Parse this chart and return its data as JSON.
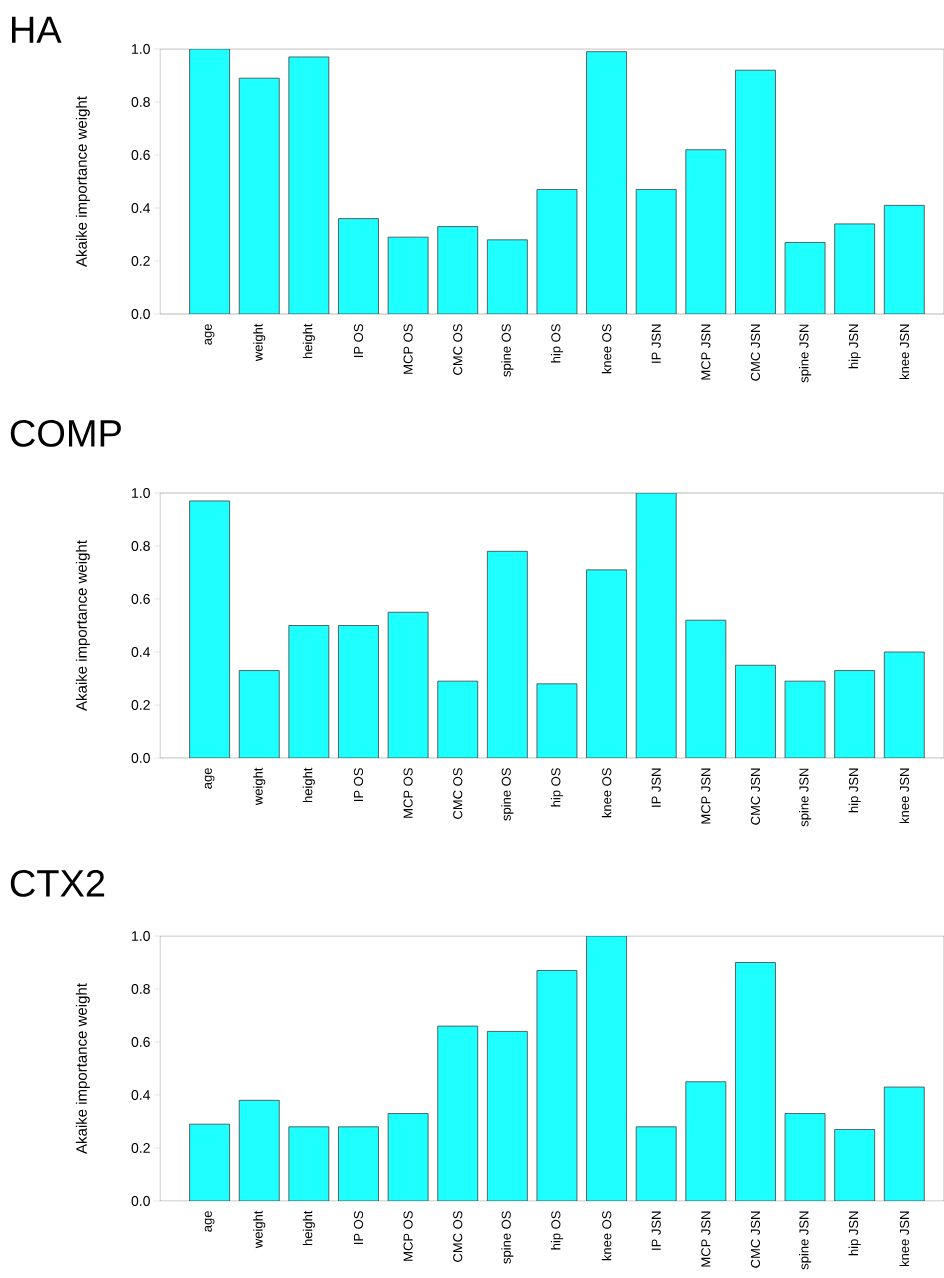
{
  "chart_data": [
    {
      "type": "bar",
      "title": "HA",
      "ylabel": "Akaike importance weight",
      "color": "#1effff",
      "categories": [
        "age",
        "weight",
        "height",
        "IP OS",
        "MCP OS",
        "CMC OS",
        "spine OS",
        "hip OS",
        "knee OS",
        "IP JSN",
        "MCP JSN",
        "CMC JSN",
        "spine JSN",
        "hip JSN",
        "knee JSN"
      ],
      "values": [
        1.0,
        0.89,
        0.97,
        0.36,
        0.29,
        0.33,
        0.28,
        0.47,
        0.99,
        0.47,
        0.62,
        0.92,
        0.27,
        0.34,
        0.41
      ],
      "ylim": [
        0,
        1
      ],
      "yticks": [
        {
          "value": 0,
          "label": "0.0"
        },
        {
          "value": 0.2,
          "label": "0.2"
        },
        {
          "value": 0.4,
          "label": "0.4"
        },
        {
          "value": 0.6,
          "label": "0.6"
        },
        {
          "value": 0.8,
          "label": "0.8"
        },
        {
          "value": 1,
          "label": "1.0"
        }
      ]
    },
    {
      "type": "bar",
      "title": "COMP",
      "ylabel": "Akaike importance weight",
      "color": "#1effff",
      "categories": [
        "age",
        "weight",
        "height",
        "IP OS",
        "MCP OS",
        "CMC OS",
        "spine OS",
        "hip OS",
        "knee OS",
        "IP JSN",
        "MCP JSN",
        "CMC JSN",
        "spine JSN",
        "hip JSN",
        "knee JSN"
      ],
      "values": [
        0.97,
        0.33,
        0.5,
        0.5,
        0.55,
        0.29,
        0.78,
        0.28,
        0.71,
        1.0,
        0.52,
        0.35,
        0.29,
        0.33,
        0.4
      ],
      "ylim": [
        0,
        1
      ],
      "yticks": [
        {
          "value": 0,
          "label": "0.0"
        },
        {
          "value": 0.2,
          "label": "0.2"
        },
        {
          "value": 0.4,
          "label": "0.4"
        },
        {
          "value": 0.6,
          "label": "0.6"
        },
        {
          "value": 0.8,
          "label": "0.8"
        },
        {
          "value": 1,
          "label": "1.0"
        }
      ]
    },
    {
      "type": "bar",
      "title": "CTX2",
      "ylabel": "Akaike importance weight",
      "color": "#1effff",
      "categories": [
        "age",
        "weight",
        "height",
        "IP OS",
        "MCP OS",
        "CMC OS",
        "spine OS",
        "hip OS",
        "knee OS",
        "IP JSN",
        "MCP JSN",
        "CMC JSN",
        "spine JSN",
        "hip JSN",
        "knee JSN"
      ],
      "values": [
        0.29,
        0.38,
        0.28,
        0.28,
        0.33,
        0.66,
        0.64,
        0.87,
        1.0,
        0.28,
        0.45,
        0.9,
        0.33,
        0.27,
        0.43
      ],
      "ylim": [
        0,
        1
      ],
      "yticks": [
        {
          "value": 0,
          "label": "0.0"
        },
        {
          "value": 0.2,
          "label": "0.2"
        },
        {
          "value": 0.4,
          "label": "0.4"
        },
        {
          "value": 0.6,
          "label": "0.6"
        },
        {
          "value": 0.8,
          "label": "0.8"
        },
        {
          "value": 1,
          "label": "1.0"
        }
      ]
    }
  ]
}
